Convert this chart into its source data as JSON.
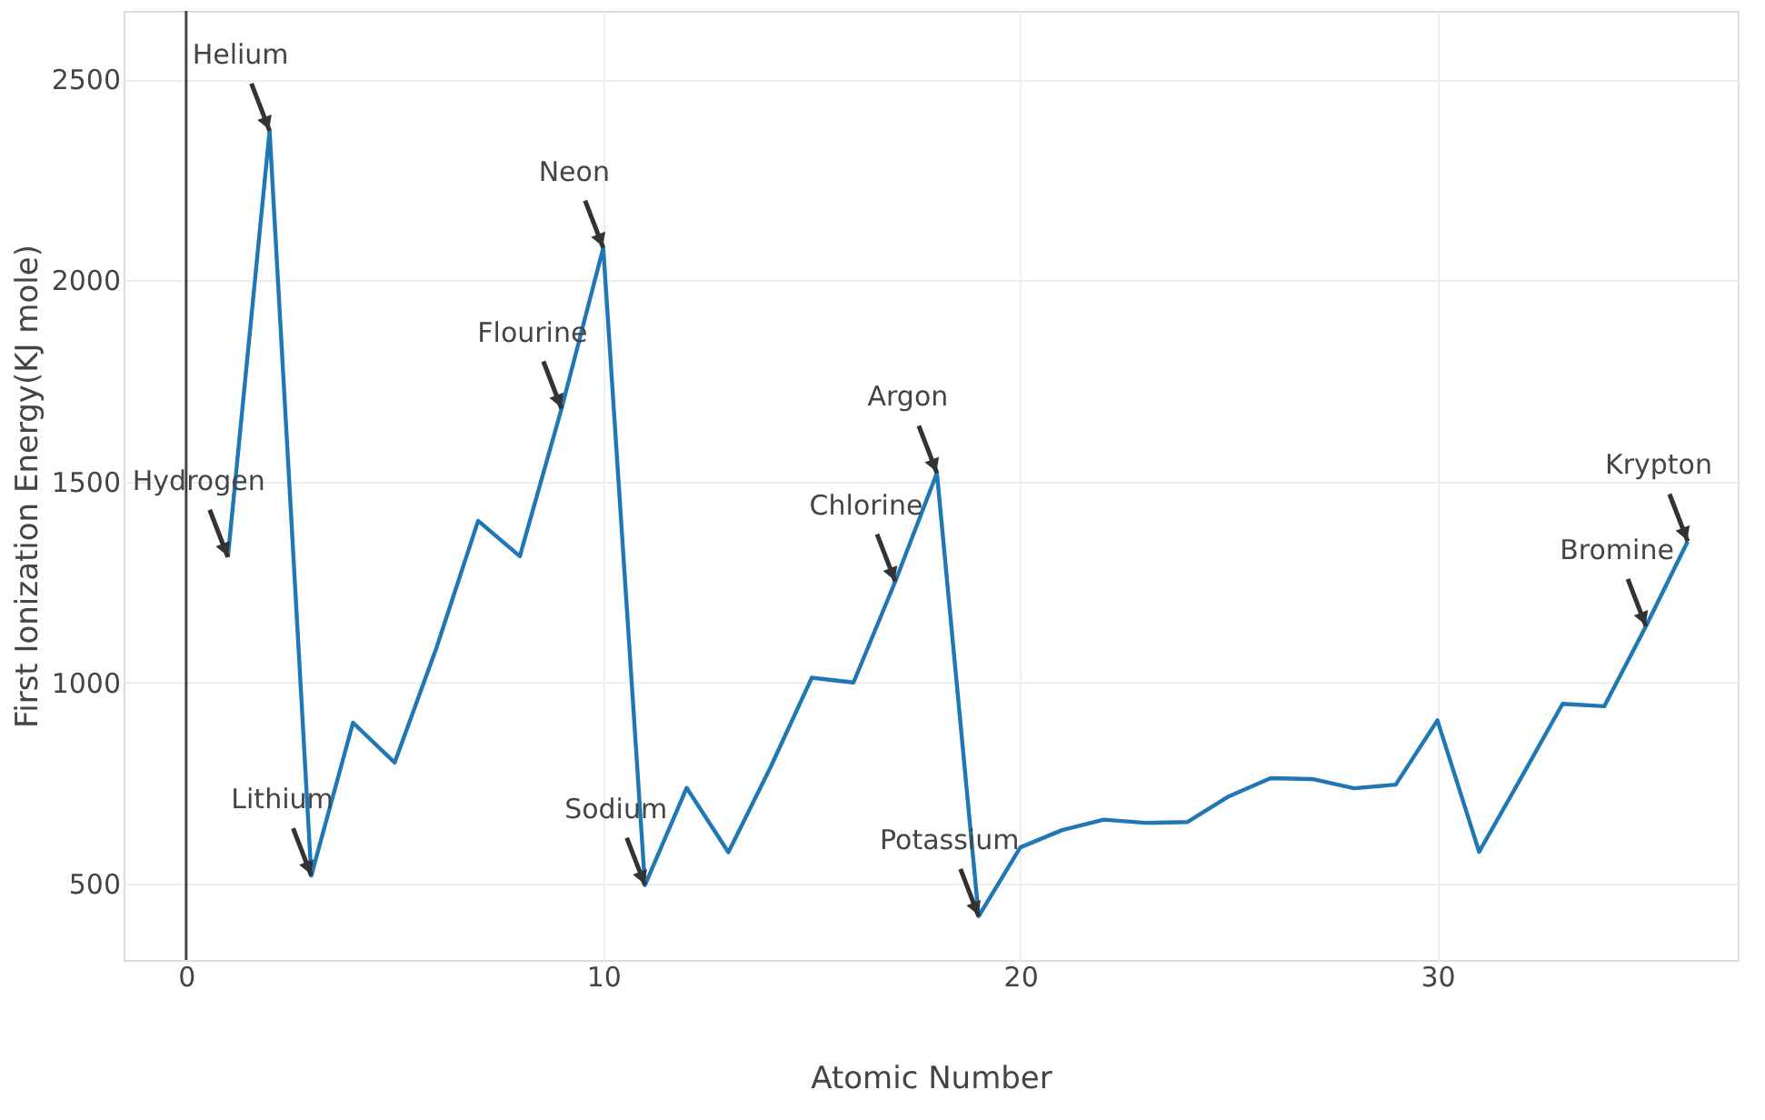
{
  "chart_data": {
    "type": "line",
    "xlabel": "Atomic Number",
    "ylabel": "First Ionization Energy(KJ mole)",
    "x": [
      1,
      2,
      3,
      4,
      5,
      6,
      7,
      8,
      9,
      10,
      11,
      12,
      13,
      14,
      15,
      16,
      17,
      18,
      19,
      20,
      21,
      22,
      23,
      24,
      25,
      26,
      27,
      28,
      29,
      30,
      31,
      32,
      33,
      34,
      35,
      36
    ],
    "series": [
      {
        "color": "#1f77b4",
        "values": [
          1312,
          2372,
          520,
          900,
          801,
          1086,
          1402,
          1314,
          1681,
          2081,
          496,
          738,
          578,
          787,
          1012,
          1000,
          1251,
          1521,
          419,
          590,
          633,
          659,
          651,
          653,
          717,
          762,
          760,
          737,
          746,
          906,
          579,
          762,
          947,
          941,
          1140,
          1351
        ]
      }
    ],
    "xlim": [
      -1.5,
      37.2
    ],
    "ylim": [
      310,
      2670
    ],
    "xticks": [
      0,
      10,
      20,
      30
    ],
    "yticks": [
      500,
      1000,
      1500,
      2000,
      2500
    ],
    "grid": true,
    "marker": "none",
    "line_style": "solid",
    "ref_lines": [
      {
        "axis": "x",
        "value": 0,
        "color": "#444444"
      }
    ],
    "annotations": [
      {
        "text": "Hydrogen",
        "x": 1,
        "y": 1312
      },
      {
        "text": "Helium",
        "x": 2,
        "y": 2372
      },
      {
        "text": "Lithium",
        "x": 3,
        "y": 520
      },
      {
        "text": "Flourine",
        "x": 9,
        "y": 1681
      },
      {
        "text": "Neon",
        "x": 10,
        "y": 2081
      },
      {
        "text": "Sodium",
        "x": 11,
        "y": 496
      },
      {
        "text": "Chlorine",
        "x": 17,
        "y": 1251
      },
      {
        "text": "Argon",
        "x": 18,
        "y": 1521
      },
      {
        "text": "Potassium",
        "x": 19,
        "y": 419
      },
      {
        "text": "Bromine",
        "x": 35,
        "y": 1140
      },
      {
        "text": "Krypton",
        "x": 36,
        "y": 1351
      }
    ]
  }
}
